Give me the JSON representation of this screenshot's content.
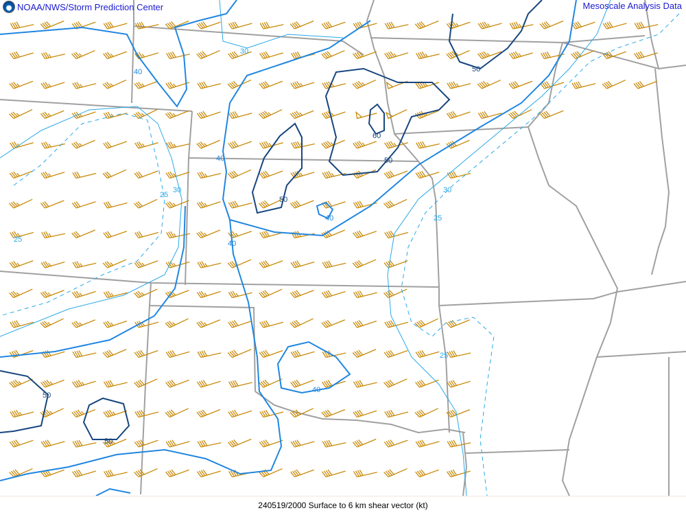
{
  "header": {
    "agency": "NOAA/NWS/Storm Prediction Center",
    "product": "Mesoscale Analysis Data",
    "logo": "noaa-logo"
  },
  "footer": {
    "caption": "240519/2000 Surface to 6 km shear vector (kt)"
  },
  "colors": {
    "barb": "#c88a0a",
    "contour_light": "#29a8e8",
    "contour_mid": "#1f86e0",
    "contour_dark": "#17457e",
    "border": "#a0a0a0"
  },
  "contour_labels": {
    "c25a": "25",
    "c25b": "25",
    "c25c": "25",
    "c25d": "25",
    "c30a": "30",
    "c30b": "30",
    "c30c": "30",
    "c40a": "40",
    "c40b": "40",
    "c40c": "40",
    "c40d": "40",
    "c40e": "40",
    "c50a": "50",
    "c50b": "50",
    "c50c": "50",
    "c50d": "50",
    "c50e": "50",
    "c60a": "60"
  }
}
